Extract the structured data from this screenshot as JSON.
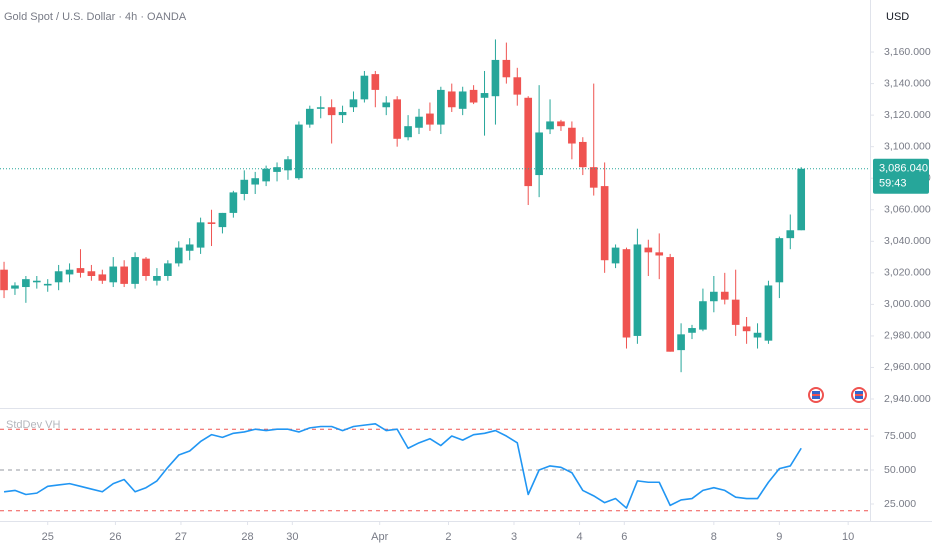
{
  "chart_data": [
    {
      "type": "candlestick",
      "title": "Gold Spot / U.S. Dollar · 4h · OANDA",
      "currency": "USD",
      "open": [
        3022,
        3010,
        3011,
        3014,
        3012,
        3014,
        3019,
        3023,
        3021,
        3019,
        3014,
        3024,
        3013,
        3029,
        3015,
        3018,
        3026,
        3034,
        3036,
        3052,
        3049,
        3058,
        3070,
        3076,
        3078,
        3084,
        3085,
        3080,
        3114,
        3124,
        3125,
        3120,
        3125,
        3130,
        3146,
        3125,
        3130,
        3106,
        3112,
        3121,
        3114,
        3135,
        3124,
        3136,
        3131,
        3132,
        3155,
        3144,
        3131,
        3082,
        3111,
        3116,
        3112,
        3103,
        3087,
        3075,
        3026,
        3035,
        2980,
        3036,
        3033,
        3030,
        2971,
        2982,
        2984,
        3002,
        3008,
        3003,
        2986,
        2979,
        2977,
        3014,
        3042,
        3047
      ],
      "high": [
        3027,
        3014,
        3018,
        3018,
        3016,
        3025,
        3026,
        3035,
        3025,
        3022,
        3030,
        3028,
        3033,
        3030,
        3023,
        3028,
        3040,
        3042,
        3055,
        3060,
        3058,
        3072,
        3085,
        3084,
        3088,
        3090,
        3094,
        3116,
        3126,
        3132,
        3130,
        3126,
        3135,
        3148,
        3148,
        3132,
        3132,
        3120,
        3124,
        3128,
        3138,
        3140,
        3138,
        3139,
        3148,
        3168,
        3166,
        3150,
        3132,
        3139,
        3130,
        3117,
        3116,
        3106,
        3140,
        3090,
        3038,
        3036,
        3048,
        3041,
        3045,
        3032,
        2988,
        2987,
        3010,
        3018,
        3020,
        3022,
        2992,
        2988,
        3015,
        3043,
        3057,
        3087
      ],
      "low": [
        3004,
        3006,
        3001,
        3010,
        3008,
        3009,
        3014,
        3017,
        3015,
        3013,
        3011,
        3011,
        3010,
        3015,
        3012,
        3015,
        3024,
        3028,
        3032,
        3037,
        3045,
        3055,
        3066,
        3070,
        3075,
        3078,
        3079,
        3079,
        3112,
        3118,
        3102,
        3115,
        3122,
        3128,
        3125,
        3120,
        3100,
        3104,
        3108,
        3110,
        3108,
        3122,
        3120,
        3127,
        3107,
        3114,
        3140,
        3126,
        3063,
        3068,
        3108,
        3110,
        3092,
        3082,
        3069,
        3020,
        3023,
        2972,
        2975,
        3018,
        3016,
        2970,
        2957,
        2978,
        2983,
        2995,
        3000,
        2980,
        2975,
        2972,
        2975,
        3004,
        3035,
        3047
      ],
      "close": [
        3009,
        3012,
        3016,
        3015,
        3013,
        3021,
        3022,
        3020,
        3018,
        3015,
        3024,
        3013,
        3030,
        3018,
        3018,
        3026,
        3036,
        3038,
        3052,
        3051,
        3058,
        3071,
        3079,
        3080,
        3086,
        3087,
        3092,
        3114,
        3124,
        3125,
        3120,
        3122,
        3130,
        3145,
        3136,
        3128,
        3105,
        3113,
        3119,
        3114,
        3136,
        3125,
        3135,
        3128,
        3134,
        3155,
        3144,
        3133,
        3075,
        3109,
        3116,
        3113,
        3102,
        3087,
        3074,
        3028,
        3036,
        2979,
        3038,
        3033,
        3031,
        2970,
        2981,
        2985,
        3002,
        3008,
        3003,
        2987,
        2983,
        2982,
        3012,
        3042,
        3047,
        3086
      ],
      "up_color": "#26a69a",
      "down_color": "#ef5350",
      "xlim": [
        -0.37,
        79.3
      ],
      "xticks": [
        {
          "value": 4,
          "label": "25"
        },
        {
          "value": 10.2,
          "label": "26"
        },
        {
          "value": 16.2,
          "label": "27"
        },
        {
          "value": 22.3,
          "label": "28"
        },
        {
          "value": 26.4,
          "label": "30"
        },
        {
          "value": 34.4,
          "label": "Apr"
        },
        {
          "value": 40.7,
          "label": "2"
        },
        {
          "value": 46.7,
          "label": "3"
        },
        {
          "value": 52.7,
          "label": "4"
        },
        {
          "value": 56.8,
          "label": "6"
        },
        {
          "value": 65,
          "label": "8"
        },
        {
          "value": 71,
          "label": "9"
        },
        {
          "value": 77.3,
          "label": "10"
        }
      ],
      "ylim": [
        2934.3,
        3193
      ],
      "yticks": [
        {
          "value": 2940,
          "label": "2,940.000"
        },
        {
          "value": 2960,
          "label": "2,960.000"
        },
        {
          "value": 2980,
          "label": "2,980.000"
        },
        {
          "value": 3000,
          "label": "3,000.000"
        },
        {
          "value": 3020,
          "label": "3,020.000"
        },
        {
          "value": 3040,
          "label": "3,040.000"
        },
        {
          "value": 3060,
          "label": "3,060.000"
        },
        {
          "value": 3080,
          "label": "3,080.000"
        },
        {
          "value": 3100,
          "label": "3,100.000"
        },
        {
          "value": 3120,
          "label": "3,120.000"
        },
        {
          "value": 3140,
          "label": "3,140.000"
        },
        {
          "value": 3160,
          "label": "3,160.000"
        }
      ],
      "last_price": {
        "value": 3086.04,
        "label": "3,086.040"
      },
      "countdown": "59:43",
      "grid": false
    },
    {
      "type": "line",
      "title": "StdDev VH",
      "color": "#2196f3",
      "values": [
        34,
        35,
        32,
        33,
        38,
        39,
        40,
        38,
        36,
        34,
        40,
        43,
        34,
        37,
        42,
        52,
        61,
        64,
        71,
        76,
        74,
        77,
        78,
        80,
        79,
        80,
        80,
        78,
        81,
        82,
        82,
        79,
        82,
        83,
        84,
        79,
        80,
        66,
        70,
        73,
        68,
        75,
        72,
        76,
        77,
        79,
        75,
        70,
        32,
        50,
        53,
        52,
        48,
        35,
        31,
        26,
        29,
        22,
        42,
        41,
        41,
        24,
        28,
        29,
        35,
        37,
        35,
        30,
        29,
        29,
        41,
        51,
        53,
        66
      ],
      "ylim": [
        12.5,
        93.4
      ],
      "yticks": [
        {
          "value": 25,
          "label": "25.000"
        },
        {
          "value": 50,
          "label": "50.000"
        },
        {
          "value": 75,
          "label": "75.000"
        }
      ],
      "levels": [
        {
          "value": 80,
          "color": "#ef5350"
        },
        {
          "value": 50,
          "color": "#9598a1"
        },
        {
          "value": 20,
          "color": "#ef5350"
        }
      ]
    }
  ]
}
